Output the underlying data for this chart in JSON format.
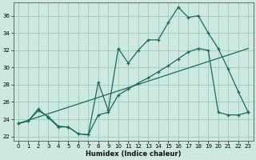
{
  "xlabel": "Humidex (Indice chaleur)",
  "background_color": "#cce8e0",
  "grid_color": "#99ccbb",
  "line_color": "#1a6b5a",
  "xlim": [
    -0.5,
    23.5
  ],
  "ylim": [
    21.5,
    37.5
  ],
  "xtick_labels": [
    "0",
    "1",
    "2",
    "3",
    "4",
    "5",
    "6",
    "7",
    "8",
    "9",
    "10",
    "11",
    "12",
    "13",
    "14",
    "15",
    "16",
    "17",
    "18",
    "19",
    "20",
    "21",
    "22",
    "23"
  ],
  "xtick_vals": [
    0,
    1,
    2,
    3,
    4,
    5,
    6,
    7,
    8,
    9,
    10,
    11,
    12,
    13,
    14,
    15,
    16,
    17,
    18,
    19,
    20,
    21,
    22,
    23
  ],
  "ytick_vals": [
    22,
    24,
    26,
    28,
    30,
    32,
    34,
    36
  ],
  "series1_x": [
    0,
    1,
    2,
    3,
    4,
    5,
    6,
    7,
    8,
    9,
    10,
    11,
    12,
    13,
    14,
    15,
    16,
    17,
    18,
    19,
    20,
    21,
    22,
    23
  ],
  "series1_y": [
    23.5,
    23.8,
    25.0,
    24.3,
    23.2,
    23.1,
    22.3,
    22.2,
    28.3,
    25.0,
    32.2,
    30.5,
    32.0,
    33.2,
    33.2,
    35.2,
    37.0,
    35.8,
    36.0,
    34.0,
    32.2,
    29.8,
    27.2,
    24.8
  ],
  "series2_x": [
    0,
    1,
    2,
    3,
    4,
    5,
    6,
    7,
    8,
    9,
    10,
    11,
    12,
    13,
    14,
    15,
    16,
    17,
    18,
    19,
    20,
    21,
    22,
    23
  ],
  "series2_y": [
    23.5,
    23.8,
    25.2,
    24.2,
    23.1,
    23.1,
    22.3,
    22.2,
    24.5,
    24.8,
    26.8,
    27.5,
    28.2,
    28.8,
    29.5,
    30.2,
    31.0,
    31.8,
    32.2,
    32.0,
    24.8,
    24.5,
    24.5,
    24.8
  ],
  "series3_x": [
    0,
    23
  ],
  "series3_y": [
    23.5,
    32.2
  ]
}
